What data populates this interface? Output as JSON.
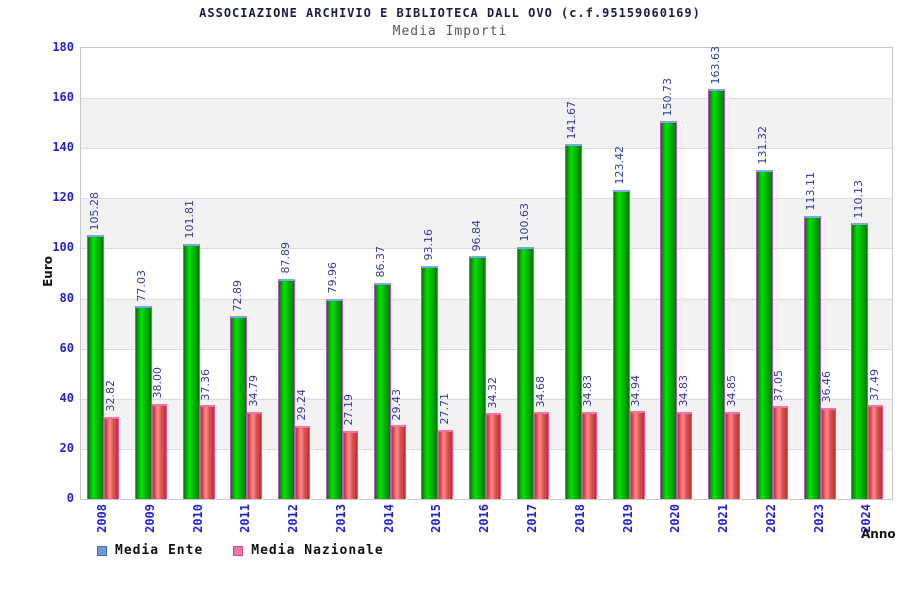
{
  "header": {
    "title": "ASSOCIAZIONE ARCHIVIO E BIBLIOTECA DALL OVO (c.f.95159060169)",
    "subtitle": "Media Importi"
  },
  "chart_data": {
    "type": "bar",
    "title": "ASSOCIAZIONE ARCHIVIO E BIBLIOTECA DALL OVO (c.f.95159060169)",
    "subtitle": "Media Importi",
    "xlabel": "Anno",
    "ylabel": "Euro",
    "ylim": [
      0,
      180
    ],
    "ytick_step": 20,
    "grid": "horizontal-bands-alternating",
    "legend_position": "bottom-left",
    "categories": [
      "2008",
      "2009",
      "2010",
      "2011",
      "2012",
      "2013",
      "2014",
      "2015",
      "2016",
      "2017",
      "2018",
      "2019",
      "2020",
      "2021",
      "2022",
      "2023",
      "2024"
    ],
    "series": [
      {
        "name": "Media Ente",
        "values": [
          105.28,
          77.03,
          101.81,
          72.89,
          87.89,
          79.96,
          86.37,
          93.16,
          96.84,
          100.63,
          141.67,
          123.42,
          150.73,
          163.63,
          131.32,
          113.11,
          110.13
        ],
        "bar_style": "ente",
        "legend_fill": "#6b9bd7",
        "legend_border": "#3a72b8"
      },
      {
        "name": "Media Nazionale",
        "values": [
          32.82,
          38.0,
          37.36,
          34.79,
          29.24,
          27.19,
          29.43,
          27.71,
          34.32,
          34.68,
          34.83,
          34.94,
          34.83,
          34.85,
          37.05,
          36.46,
          37.49
        ],
        "bar_style": "naz",
        "legend_fill": "#ee77aa",
        "legend_border": "#c94b8b"
      }
    ]
  },
  "colors": {
    "tick_label": "#2323cf",
    "value_label": "#333a9e",
    "band_gray": "#f2f2f2",
    "grid_line": "#dcdcdc",
    "bar_green_hi": "#00e400",
    "bar_green_lo": "#067806",
    "bar_green_cap": "#7da7e8",
    "bar_red_hi": "#f98d8d",
    "bar_red_lo": "#c63030",
    "bar_red_cap": "#f272aa"
  }
}
